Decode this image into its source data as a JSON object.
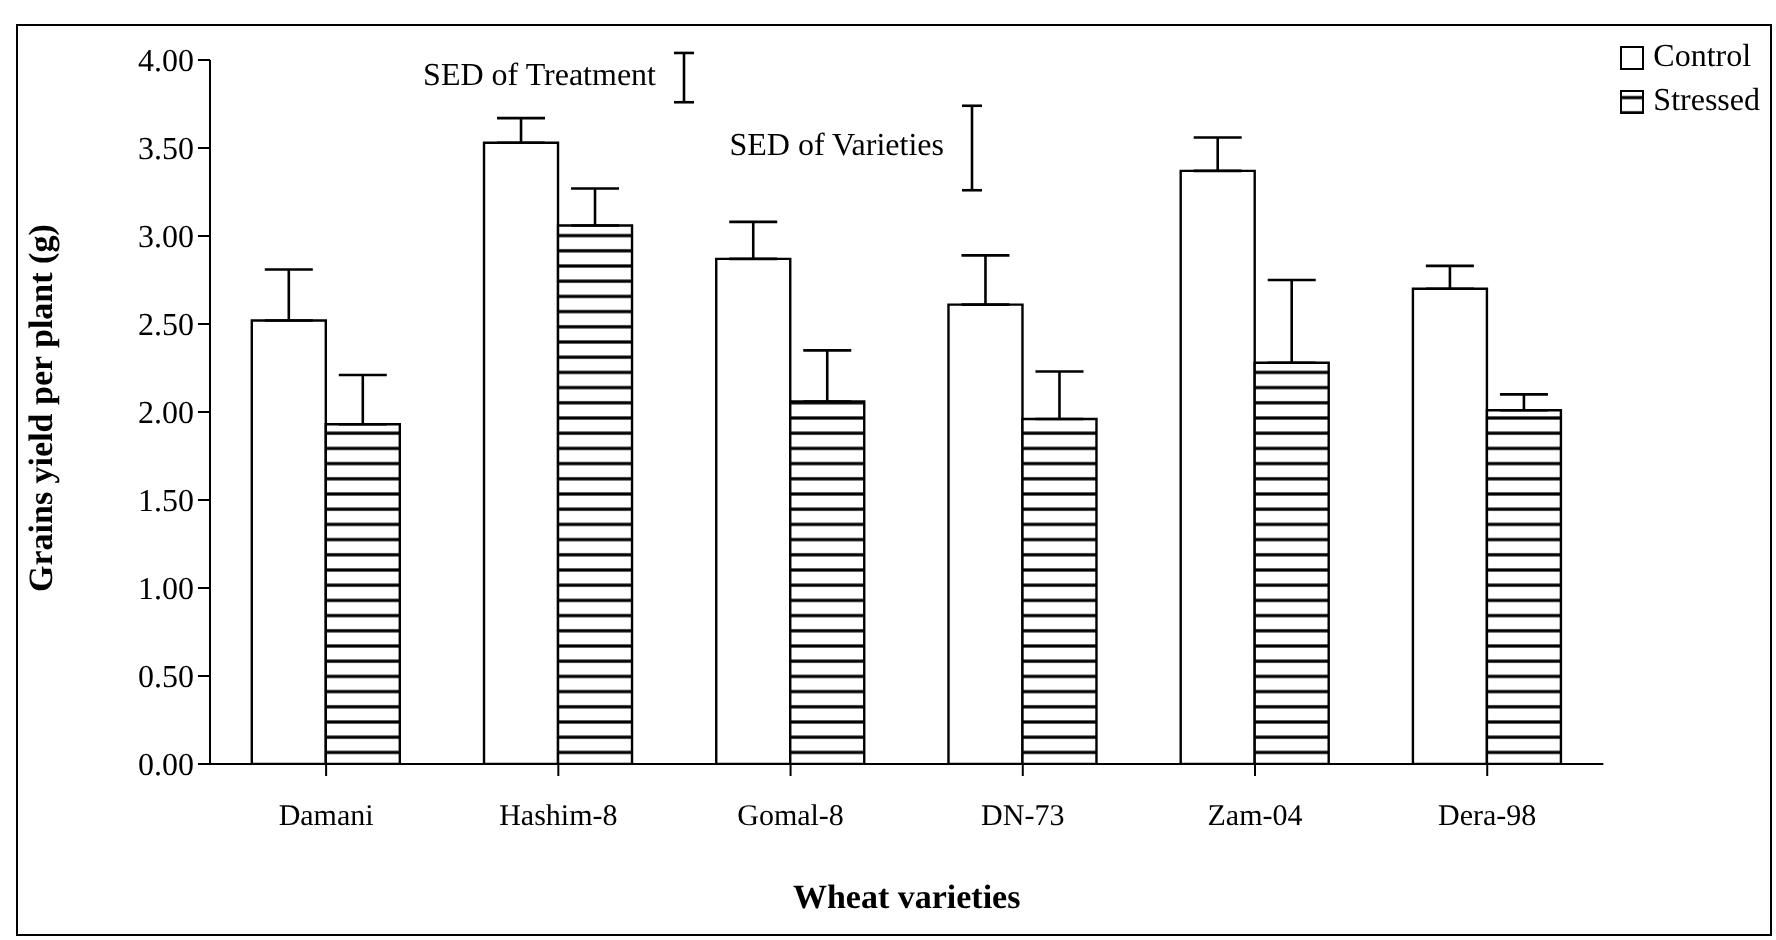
{
  "chart_data": {
    "type": "bar",
    "xlabel": "Wheat varieties",
    "ylabel": "Grains yield per plant (g)",
    "categories": [
      "Damani",
      "Hashim-8",
      "Gomal-8",
      "DN-73",
      "Zam-04",
      "Dera-98"
    ],
    "series": [
      {
        "name": "Control",
        "color": "#ffffff",
        "values": [
          2.52,
          3.53,
          2.87,
          2.61,
          3.37,
          2.7
        ],
        "errors": [
          [
            2.52,
            2.81
          ],
          [
            3.53,
            3.67
          ],
          [
            2.87,
            3.08
          ],
          [
            2.61,
            2.89
          ],
          [
            3.37,
            3.56
          ],
          [
            2.7,
            2.83
          ]
        ]
      },
      {
        "name": "Stressed",
        "color": "#000000",
        "values": [
          1.93,
          3.06,
          2.06,
          1.96,
          2.28,
          2.01
        ],
        "errors": [
          [
            1.93,
            2.21
          ],
          [
            3.06,
            3.27
          ],
          [
            2.06,
            2.35
          ],
          [
            1.96,
            2.23
          ],
          [
            2.28,
            2.75
          ],
          [
            2.01,
            2.1
          ]
        ]
      }
    ],
    "ylim": [
      0,
      4
    ],
    "yticks": [
      {
        "value": 0,
        "label": "0.00"
      },
      {
        "value": 0.5,
        "label": "0.50"
      },
      {
        "value": 1,
        "label": "1.00"
      },
      {
        "value": 1.5,
        "label": "1.50"
      },
      {
        "value": 2,
        "label": "2.00"
      },
      {
        "value": 2.5,
        "label": "2.50"
      },
      {
        "value": 3,
        "label": "3.00"
      },
      {
        "value": 3.5,
        "label": "3.50"
      },
      {
        "value": 4,
        "label": "4.00"
      }
    ],
    "annotations": [
      "SED of Treatment",
      "SED of Varieties"
    ],
    "grid": false,
    "legend": "top right"
  }
}
